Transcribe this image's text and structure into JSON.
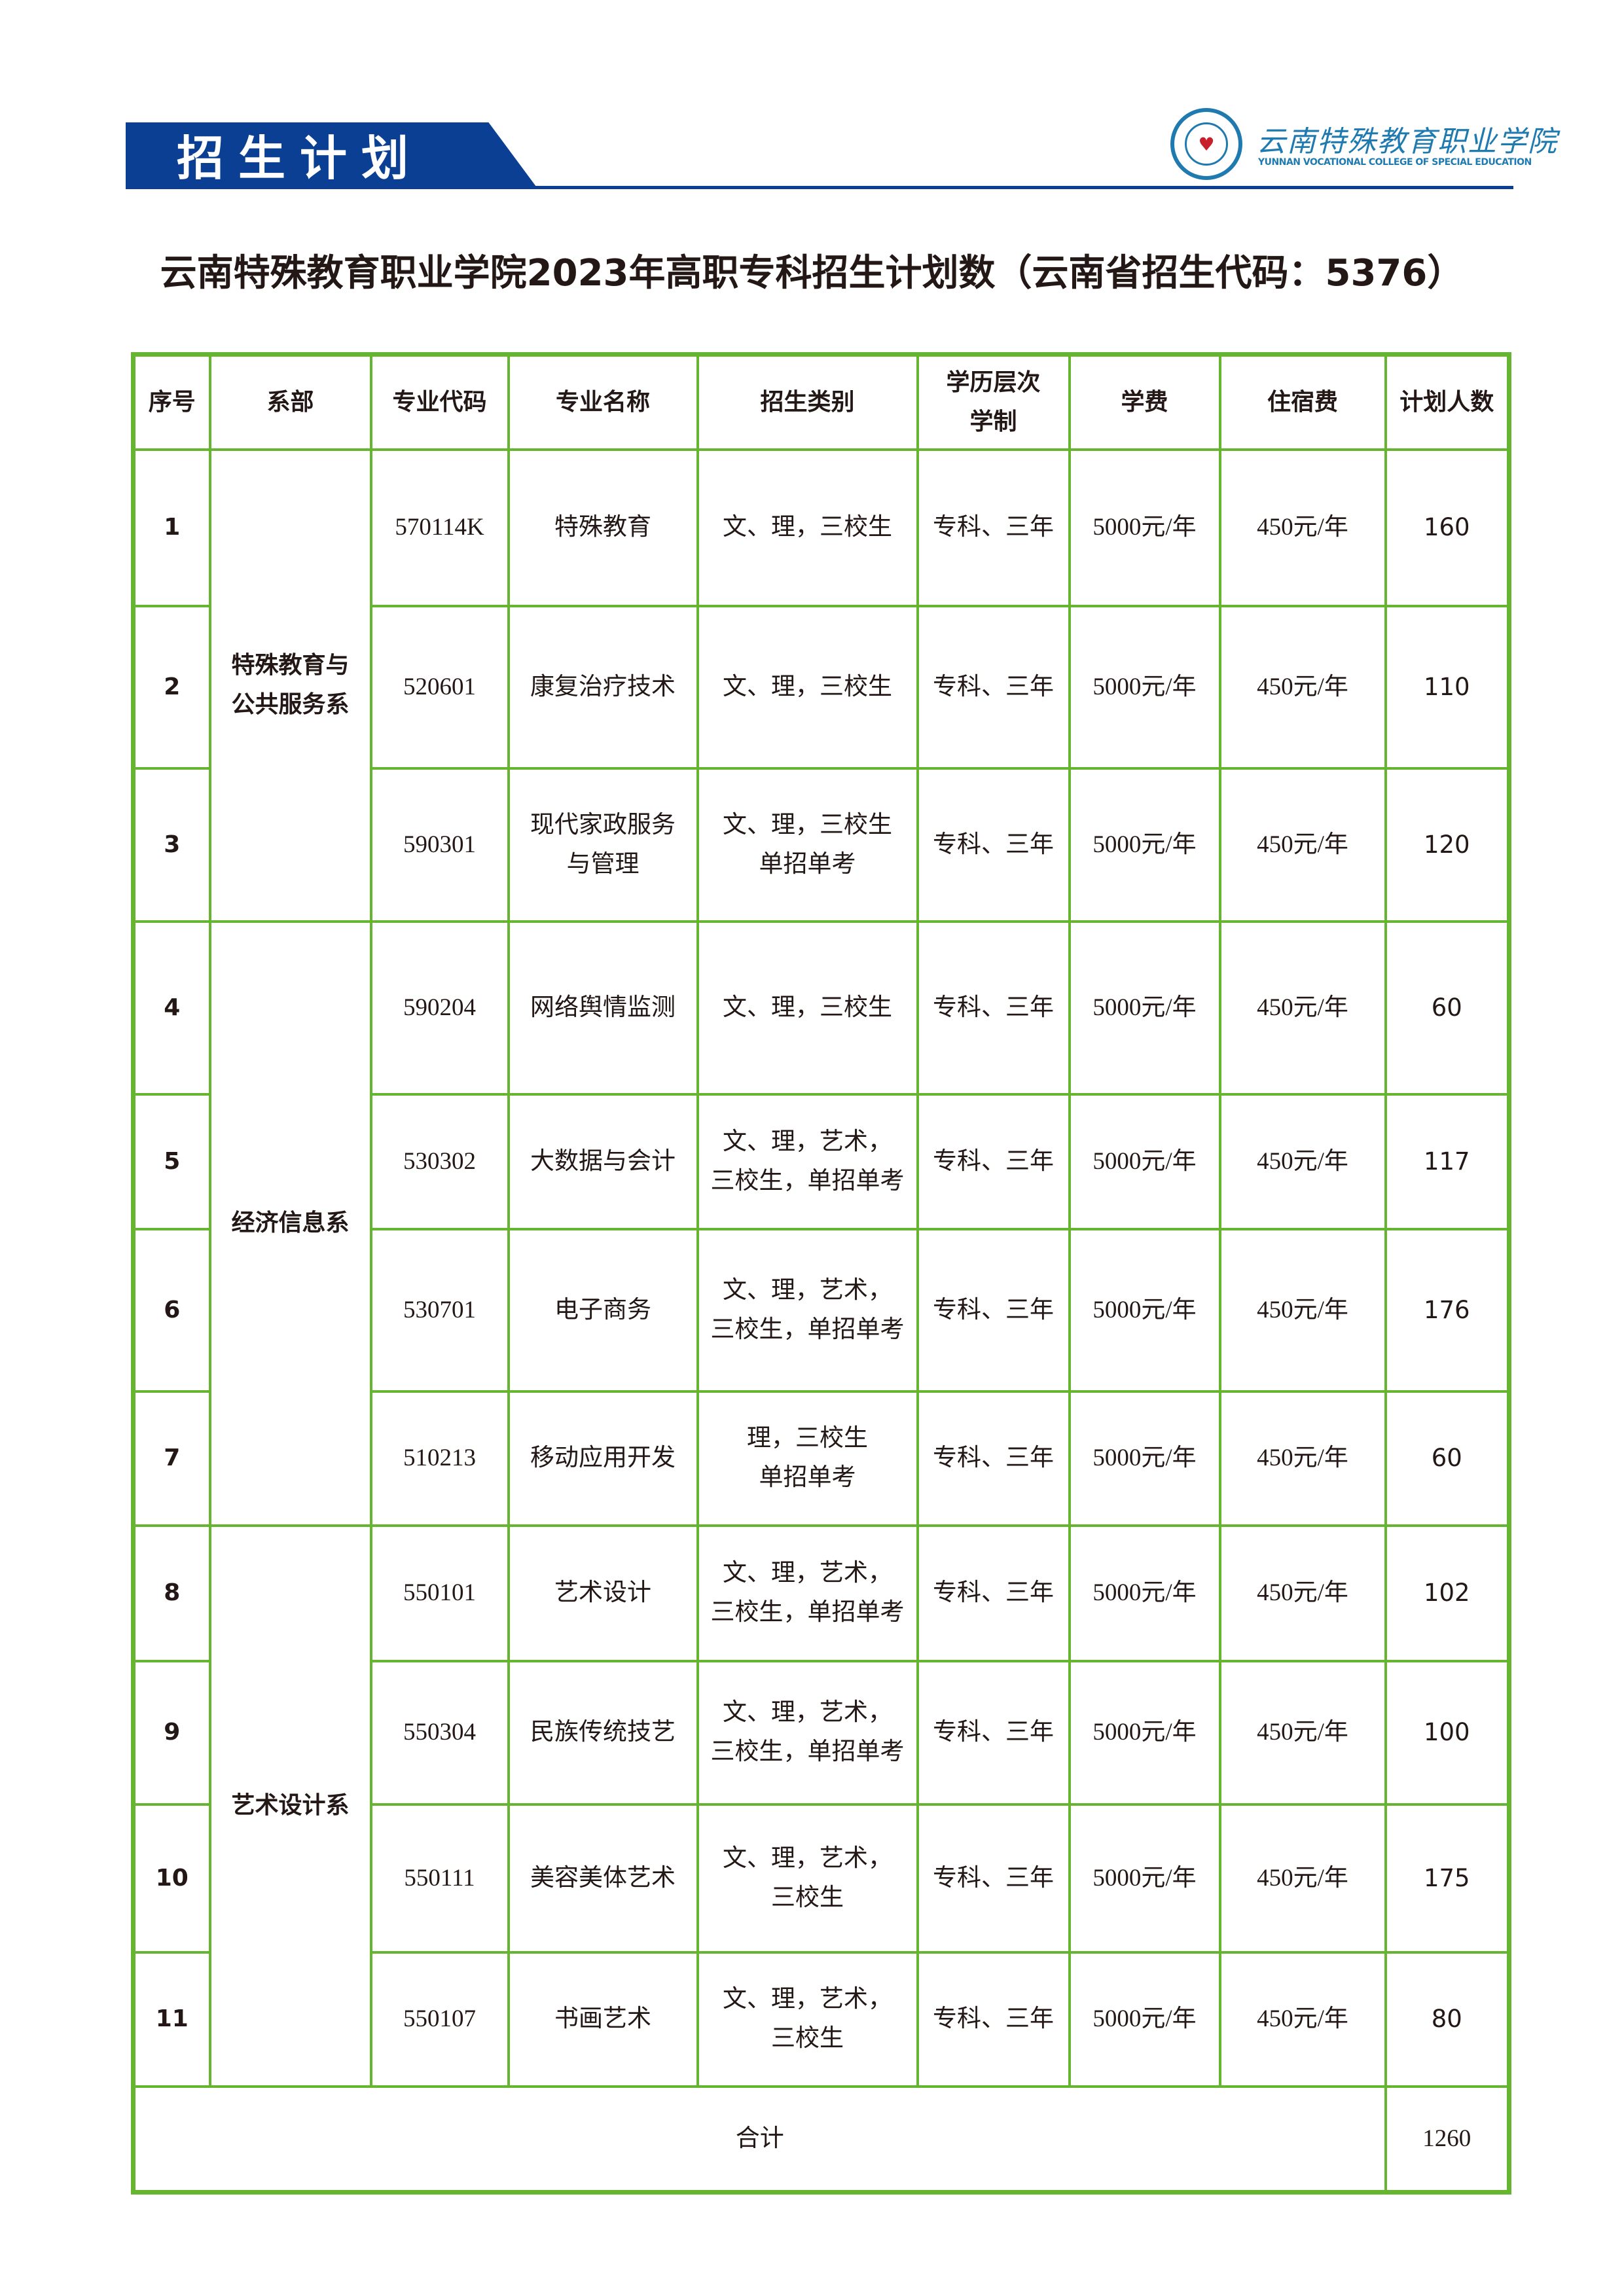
{
  "header": {
    "banner": "招生计划",
    "logo_name_cn": "云南特殊教育职业学院",
    "logo_name_en": "YUNNAN VOCATIONAL COLLEGE OF SPECIAL EDUCATION",
    "brand_color": "#0a3f93",
    "logo_color": "#1f7ab0"
  },
  "title": "云南特殊教育职业学院2023年高职专科招生计划数（云南省招生代码：5376）",
  "table": {
    "border_color": "#65b531",
    "columns": [
      "序号",
      "系部",
      "专业代码",
      "专业名称",
      "招生类别",
      "学历层次\n学制",
      "学费",
      "住宿费",
      "计划人数"
    ],
    "departments": [
      {
        "name": "特殊教育与\n公共服务系",
        "rows": 3
      },
      {
        "name": "经济信息系",
        "rows": 4
      },
      {
        "name": "艺术设计系",
        "rows": 4
      }
    ],
    "rows": [
      {
        "seq": "1",
        "code": "570114K",
        "major": "特殊教育",
        "category": "文、理，三校生",
        "level": "专科、三年",
        "tuition": "5000元/年",
        "lodging": "450元/年",
        "plan": "160"
      },
      {
        "seq": "2",
        "code": "520601",
        "major": "康复治疗技术",
        "category": "文、理，三校生",
        "level": "专科、三年",
        "tuition": "5000元/年",
        "lodging": "450元/年",
        "plan": "110"
      },
      {
        "seq": "3",
        "code": "590301",
        "major": "现代家政服务\n与管理",
        "category": "文、理，三校生\n单招单考",
        "level": "专科、三年",
        "tuition": "5000元/年",
        "lodging": "450元/年",
        "plan": "120"
      },
      {
        "seq": "4",
        "code": "590204",
        "major": "网络舆情监测",
        "category": "文、理，三校生",
        "level": "专科、三年",
        "tuition": "5000元/年",
        "lodging": "450元/年",
        "plan": "60"
      },
      {
        "seq": "5",
        "code": "530302",
        "major": "大数据与会计",
        "category": "文、理，艺术，\n三校生，单招单考",
        "level": "专科、三年",
        "tuition": "5000元/年",
        "lodging": "450元/年",
        "plan": "117"
      },
      {
        "seq": "6",
        "code": "530701",
        "major": "电子商务",
        "category": "文、理，艺术，\n三校生，单招单考",
        "level": "专科、三年",
        "tuition": "5000元/年",
        "lodging": "450元/年",
        "plan": "176"
      },
      {
        "seq": "7",
        "code": "510213",
        "major": "移动应用开发",
        "category": "理，三校生\n单招单考",
        "level": "专科、三年",
        "tuition": "5000元/年",
        "lodging": "450元/年",
        "plan": "60"
      },
      {
        "seq": "8",
        "code": "550101",
        "major": "艺术设计",
        "category": "文、理，艺术，\n三校生，单招单考",
        "level": "专科、三年",
        "tuition": "5000元/年",
        "lodging": "450元/年",
        "plan": "102"
      },
      {
        "seq": "9",
        "code": "550304",
        "major": "民族传统技艺",
        "category": "文、理，艺术，\n三校生，单招单考",
        "level": "专科、三年",
        "tuition": "5000元/年",
        "lodging": "450元/年",
        "plan": "100"
      },
      {
        "seq": "10",
        "code": "550111",
        "major": "美容美体艺术",
        "category": "文、理，艺术，\n三校生",
        "level": "专科、三年",
        "tuition": "5000元/年",
        "lodging": "450元/年",
        "plan": "175"
      },
      {
        "seq": "11",
        "code": "550107",
        "major": "书画艺术",
        "category": "文、理，艺术，\n三校生",
        "level": "专科、三年",
        "tuition": "5000元/年",
        "lodging": "450元/年",
        "plan": "80"
      }
    ],
    "total_label": "合计",
    "total_value": "1260"
  }
}
